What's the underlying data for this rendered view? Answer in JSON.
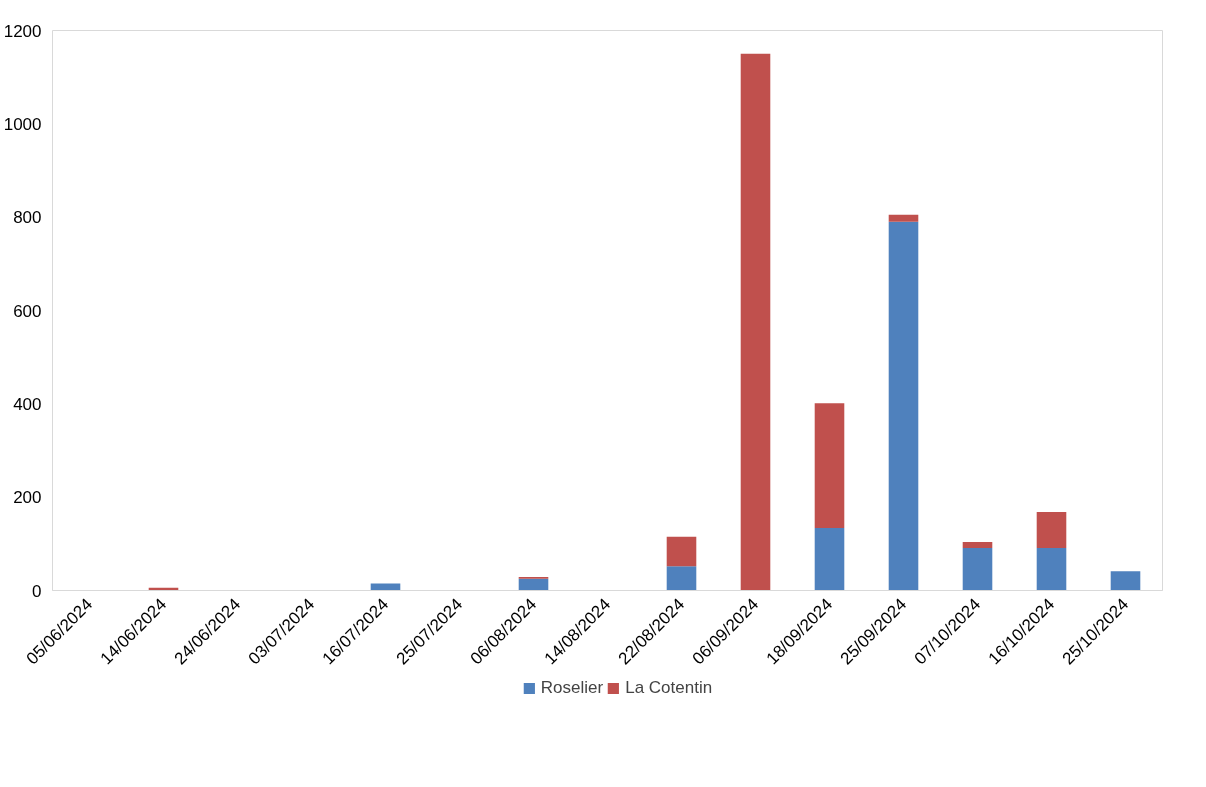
{
  "chart_data": {
    "type": "bar",
    "stacked": true,
    "categories": [
      "05/06/2024",
      "14/06/2024",
      "24/06/2024",
      "03/07/2024",
      "16/07/2024",
      "25/07/2024",
      "06/08/2024",
      "14/08/2024",
      "22/08/2024",
      "06/09/2024",
      "18/09/2024",
      "25/09/2024",
      "07/10/2024",
      "16/10/2024",
      "25/10/2024"
    ],
    "series": [
      {
        "name": "Roselier",
        "color": "#4f81bd",
        "values": [
          0,
          0,
          0,
          0,
          15,
          0,
          25,
          0,
          52,
          0,
          134,
          790,
          91,
          91,
          41
        ]
      },
      {
        "name": "La Cotentin",
        "color": "#c0504d",
        "values": [
          0,
          6,
          0,
          0,
          0,
          0,
          4,
          0,
          63,
          1150,
          267,
          15,
          13,
          77,
          0
        ]
      }
    ],
    "ylim": [
      0,
      1200
    ],
    "yticks": [
      0,
      200,
      400,
      600,
      800,
      1000,
      1200
    ],
    "grid": false,
    "legend": "bottom"
  }
}
